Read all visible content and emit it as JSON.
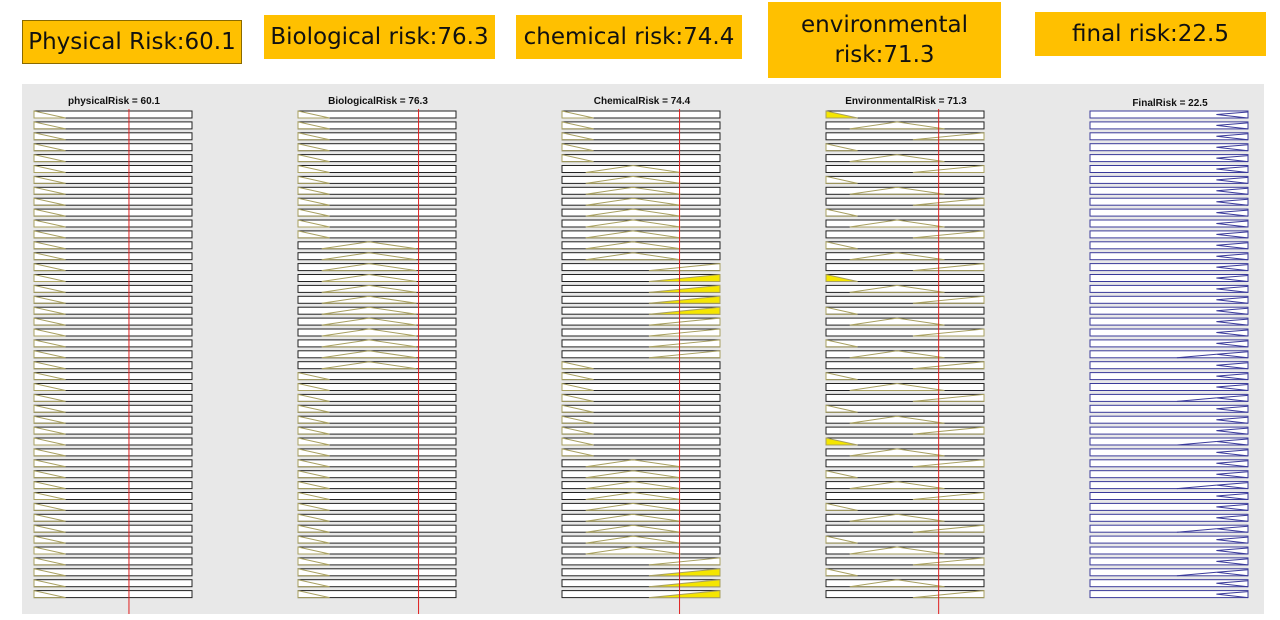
{
  "badges": [
    {
      "label": "Physical Risk:60.1"
    },
    {
      "label": "Biological risk:76.3"
    },
    {
      "label": "chemical risk:74.4"
    },
    {
      "label": "environmental risk:71.3"
    },
    {
      "label": "final risk:22.5"
    }
  ],
  "panels": [
    {
      "title": "physicalRisk = 60.1",
      "value": 60.1,
      "kind": "input",
      "line_color": "#a8a060",
      "fill_color": "#f5e600",
      "show_marker": true
    },
    {
      "title": "BiologicalRisk = 76.3",
      "value": 76.3,
      "kind": "input",
      "line_color": "#a8a060",
      "fill_color": "#f5e600",
      "show_marker": true
    },
    {
      "title": "ChemicalRisk = 74.4",
      "value": 74.4,
      "kind": "input",
      "line_color": "#a8a060",
      "fill_color": "#f5e600",
      "show_marker": true
    },
    {
      "title": "EnvironmentalRisk = 71.3",
      "value": 71.3,
      "kind": "input",
      "line_color": "#a8a060",
      "fill_color": "#f5e600",
      "show_marker": true
    },
    {
      "title": "FinalRisk = 22.5",
      "value": 22.5,
      "kind": "output",
      "line_color": "#3a3a9a",
      "fill_color": "#4040c0",
      "show_marker": false
    }
  ],
  "colors": {
    "badge_bg": "#FFC000",
    "marker_line": "#e02020",
    "viewer_bg": "#e8e8e8"
  },
  "rule_rows_visible": 45
}
